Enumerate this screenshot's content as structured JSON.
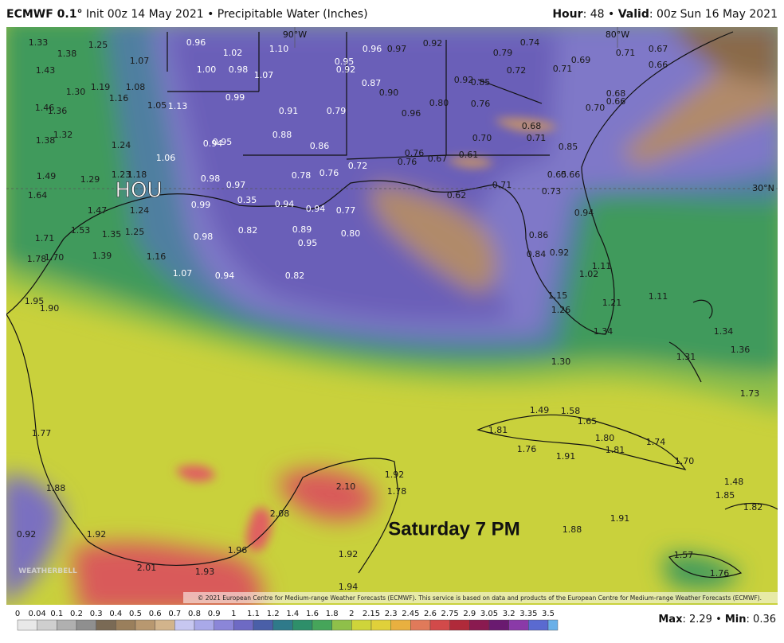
{
  "header": {
    "model": "ECMWF 0.1°",
    "info": " Init 00z 14 May 2021 • Precipitable Water (Inches)",
    "hour_label": "Hour",
    "hour": ": 48 • ",
    "valid_label": "Valid",
    "valid": ": 00z Sun 16 May 2021"
  },
  "map": {
    "city": "HOU",
    "annotation": "Saturday 7 PM",
    "lon_labels": [
      "90°W",
      "80°W"
    ],
    "lat_labels": [
      "30°N"
    ],
    "logo": "WEATHERBELL",
    "copyright": "© 2021 European Centre for Medium-range Weather Forecasts (ECMWF). This service is based on data and products of the European Centre for Medium-range Weather Forecasts (ECMWF).",
    "values": [
      "1.33",
      "1.25",
      "1.38",
      "1.07",
      "0.96",
      "1.02",
      "1.10",
      "0.95",
      "0.96",
      "0.97",
      "0.92",
      "0.74",
      "0.79",
      "0.71",
      "0.67",
      "1.43",
      "1.00",
      "0.98",
      "1.07",
      "0.92",
      "0.69",
      "0.72",
      "0.71",
      "0.66",
      "1.30",
      "1.19",
      "1.08",
      "0.87",
      "0.90",
      "0.92",
      "0.85",
      "1.16",
      "1.05",
      "1.13",
      "0.99",
      "0.80",
      "0.76",
      "0.68",
      "0.66",
      "0.70",
      "1.46",
      "1.36",
      "0.91",
      "0.79",
      "0.96",
      "0.68",
      "1.32",
      "1.38",
      "0.88",
      "0.71",
      "0.70",
      "1.24",
      "0.94",
      "0.95",
      "0.86",
      "0.85",
      "1.06",
      "0.76",
      "0.61",
      "0.76",
      "0.67",
      "0.72",
      "1.49",
      "1.29",
      "1.23",
      "1.18",
      "0.98",
      "0.78",
      "0.76",
      "0.65",
      "0.66",
      "0.97",
      "0.71",
      "0.73",
      "1.64",
      "0.35",
      "0.62",
      "0.99",
      "0.94",
      "0.94",
      "0.77",
      "0.94",
      "1.47",
      "1.24",
      "1.53",
      "1.35",
      "1.25",
      "0.82",
      "0.89",
      "0.80",
      "0.86",
      "0.98",
      "1.71",
      "0.95",
      "1.78",
      "1.70",
      "1.39",
      "1.16",
      "0.84",
      "0.92",
      "1.11",
      "1.07",
      "0.94",
      "0.82",
      "1.02",
      "1.15",
      "1.21",
      "1.11",
      "1.95",
      "1.90",
      "1.26",
      "1.34",
      "1.34",
      "1.36",
      "1.31",
      "1.30",
      "1.73",
      "1.49",
      "1.58",
      "1.65",
      "1.81",
      "1.80",
      "1.74",
      "1.77",
      "1.76",
      "1.81",
      "1.91",
      "1.70",
      "1.92",
      "1.78",
      "1.48",
      "1.85",
      "1.88",
      "2.10",
      "1.82",
      "2.08",
      "1.91",
      "0.92",
      "1.92",
      "1.88",
      "1.96",
      "1.92",
      "1.57",
      "2.01",
      "1.93",
      "1.76",
      "1.94"
    ]
  },
  "colorbar": {
    "ticks": [
      "0",
      "0.04",
      "0.1",
      "0.2",
      "0.3",
      "0.4",
      "0.5",
      "0.6",
      "0.7",
      "0.8",
      "0.9",
      "1",
      "1.1",
      "1.2",
      "1.4",
      "1.6",
      "1.8",
      "2",
      "2.15",
      "2.3",
      "2.45",
      "2.6",
      "2.75",
      "2.9",
      "3.05",
      "3.2",
      "3.35",
      "3.5"
    ],
    "colors": [
      "#e8e8e8",
      "#cfcfcf",
      "#b0b0b0",
      "#8f8f8f",
      "#7a6a55",
      "#9a7f5c",
      "#b89870",
      "#d2b48c",
      "#c7c7f0",
      "#a9a9e8",
      "#8b86d8",
      "#6e6ac4",
      "#4a5fa8",
      "#2f7a8a",
      "#2e8f6a",
      "#46a55a",
      "#8fc04a",
      "#cfd43a",
      "#e0d03a",
      "#e8b040",
      "#e07a5a",
      "#d24a4a",
      "#b02a3a",
      "#8a1a50",
      "#6a1a70",
      "#8a3aa8",
      "#5a6ad0",
      "#6ab0e8"
    ]
  },
  "footer": {
    "max_label": "Max",
    "max": ": 2.29 • ",
    "min_label": "Min",
    "min": ": 0.36"
  }
}
